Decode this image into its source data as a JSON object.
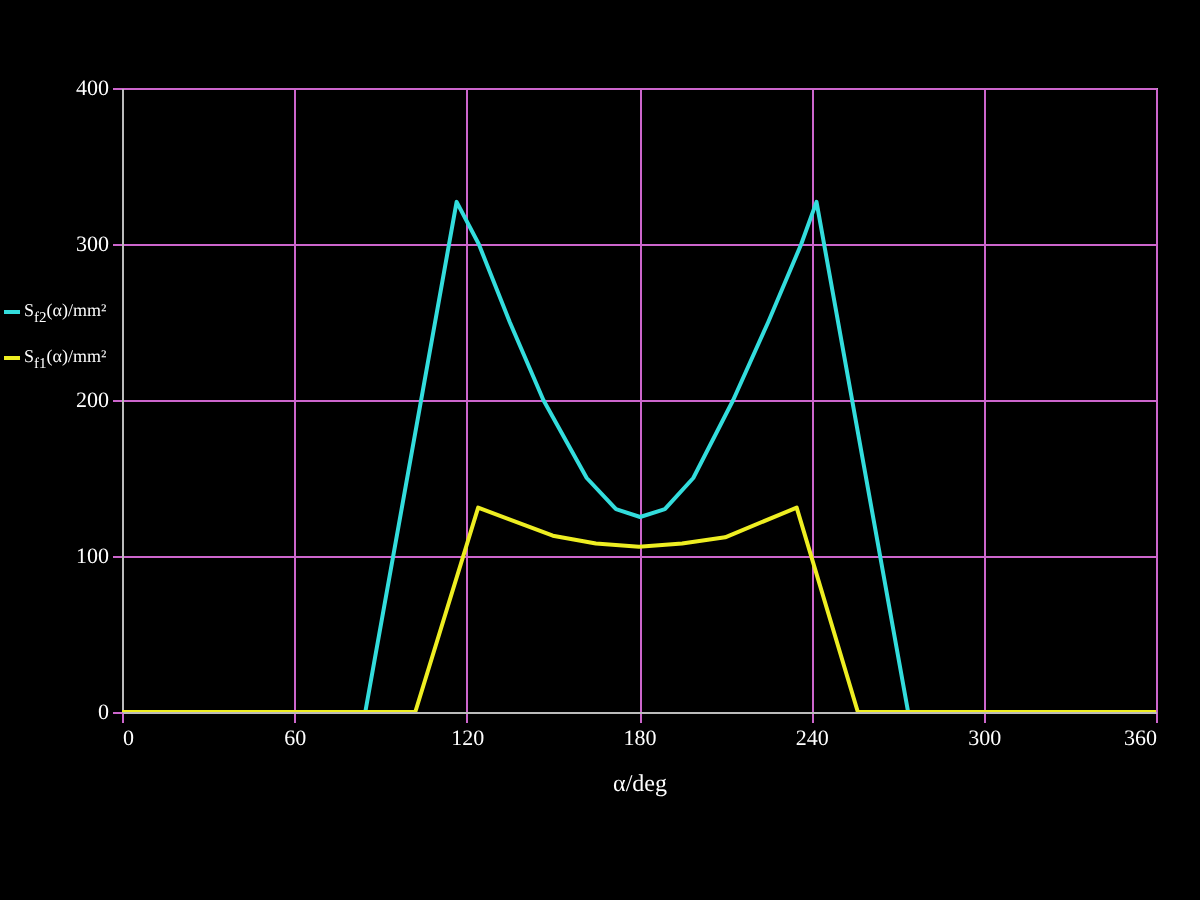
{
  "chart_data": {
    "type": "line",
    "xlabel": "α/deg",
    "xlim": [
      0,
      360
    ],
    "xticks": [
      0,
      60,
      120,
      180,
      240,
      300,
      360
    ],
    "ylim": [
      0,
      400
    ],
    "yticks": [
      0,
      100,
      200,
      300,
      400
    ],
    "grid": true,
    "legend": "left",
    "series": [
      {
        "name": "S$_{f2}$(α)/mm²",
        "color": "#33dddd",
        "x": [
          0,
          84.7,
          116.5,
          124.2,
          135,
          146.7,
          161.8,
          172,
          180.4,
          189,
          198.9,
          212.8,
          225,
          236.5,
          241.8,
          273.7,
          360
        ],
        "values": [
          0,
          0,
          327,
          300,
          250,
          200,
          150,
          130,
          125,
          130,
          150,
          200,
          250,
          300,
          327,
          0,
          0
        ]
      },
      {
        "name": "S$_{f1}$(α)/mm²",
        "color": "#eeee22",
        "x": [
          0,
          102.1,
          124,
          150,
          165,
          180,
          195,
          210,
          234.9,
          256.2,
          360
        ],
        "values": [
          0,
          0,
          131,
          113,
          108,
          106,
          108,
          112,
          131,
          0,
          0
        ]
      }
    ]
  }
}
